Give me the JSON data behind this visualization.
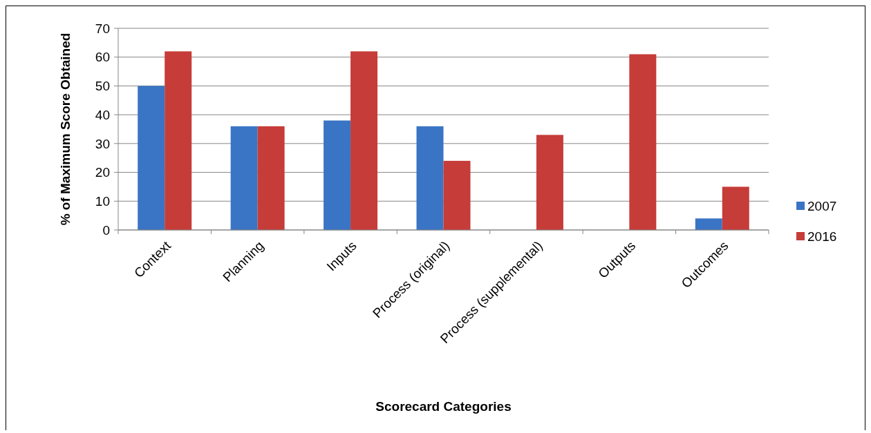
{
  "chart_data": {
    "type": "bar",
    "xlabel": "Scorecard Categories",
    "ylabel": "% of Maximum Score Obtained",
    "categories": [
      "Context",
      "Planning",
      "Inputs",
      "Process (original)",
      "Process (supplemental)",
      "Outputs",
      "Outcomes"
    ],
    "series": [
      {
        "name": "2007",
        "color": "#3a74c4",
        "values": [
          50,
          36,
          38,
          36,
          null,
          null,
          4
        ]
      },
      {
        "name": "2016",
        "color": "#c63c38",
        "values": [
          62,
          36,
          62,
          24,
          33,
          61,
          15
        ]
      }
    ],
    "ylim": [
      0,
      70
    ],
    "yticks": [
      0,
      10,
      20,
      30,
      40,
      50,
      60,
      70
    ],
    "grid": "y",
    "legend": "right"
  }
}
